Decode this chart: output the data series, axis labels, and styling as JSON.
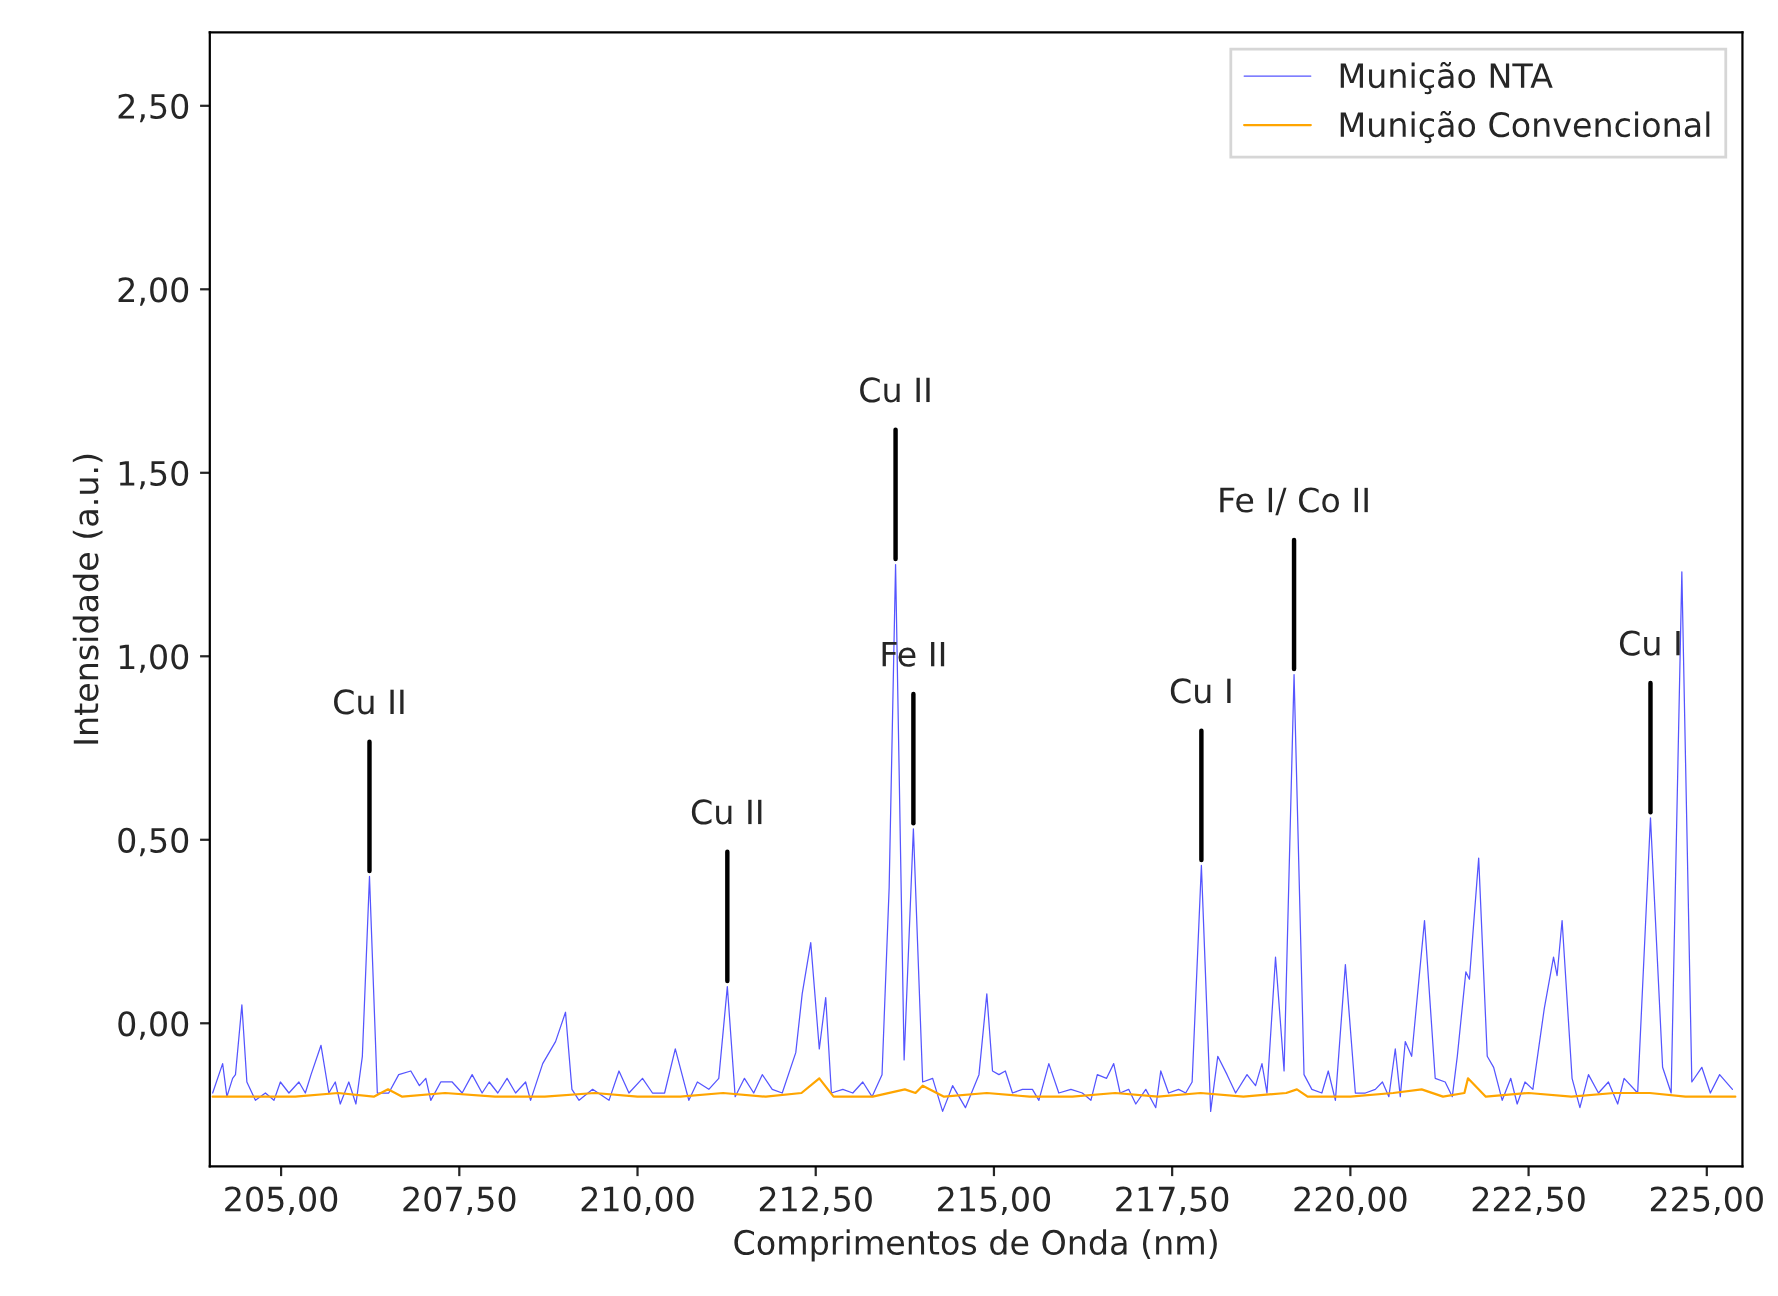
{
  "chart_data": {
    "type": "line",
    "xlabel": "Comprimentos de Onda (nm)",
    "ylabel": "Intensidade (a.u.)",
    "xlim": [
      204.0,
      225.5
    ],
    "ylim": [
      -0.39,
      2.7
    ],
    "xticks": [
      {
        "value": 205,
        "label": "205,00"
      },
      {
        "value": 207.5,
        "label": "207,50"
      },
      {
        "value": 210,
        "label": "210,00"
      },
      {
        "value": 212.5,
        "label": "212,50"
      },
      {
        "value": 215,
        "label": "215,00"
      },
      {
        "value": 217.5,
        "label": "217,50"
      },
      {
        "value": 220,
        "label": "220,00"
      },
      {
        "value": 222.5,
        "label": "222,50"
      },
      {
        "value": 225,
        "label": "225,00"
      }
    ],
    "yticks": [
      {
        "value": 0,
        "label": "0,00"
      },
      {
        "value": 0.5,
        "label": "0,50"
      },
      {
        "value": 1,
        "label": "1,00"
      },
      {
        "value": 1.5,
        "label": "1,50"
      },
      {
        "value": 2,
        "label": "2,00"
      },
      {
        "value": 2.5,
        "label": "2,50"
      }
    ],
    "grid": false,
    "legend": "top right",
    "marker": "none",
    "line_style": "solid",
    "series": [
      {
        "name": "Munição NTA",
        "color": "#5555ff",
        "x": [
          204.04,
          204.18,
          204.24,
          204.32,
          204.36,
          204.45,
          204.52,
          204.64,
          204.78,
          204.9,
          204.99,
          205.11,
          205.25,
          205.34,
          205.42,
          205.56,
          205.67,
          205.76,
          205.83,
          205.95,
          206.05,
          206.14,
          206.24,
          206.35,
          206.51,
          206.65,
          206.82,
          206.94,
          207.03,
          207.1,
          207.24,
          207.4,
          207.54,
          207.68,
          207.82,
          207.92,
          208.04,
          208.17,
          208.29,
          208.43,
          208.5,
          208.67,
          208.85,
          208.99,
          209.08,
          209.18,
          209.37,
          209.6,
          209.74,
          209.88,
          210.07,
          210.21,
          210.38,
          210.53,
          210.72,
          210.84,
          211.0,
          211.14,
          211.26,
          211.37,
          211.5,
          211.63,
          211.75,
          211.89,
          212.03,
          212.22,
          212.31,
          212.43,
          212.55,
          212.64,
          212.72,
          212.88,
          213.02,
          213.16,
          213.29,
          213.43,
          213.53,
          213.62,
          213.74,
          213.87,
          214.0,
          214.14,
          214.28,
          214.42,
          214.6,
          214.79,
          214.9,
          214.98,
          215.07,
          215.16,
          215.26,
          215.4,
          215.54,
          215.63,
          215.77,
          215.91,
          216.08,
          216.24,
          216.36,
          216.45,
          216.58,
          216.68,
          216.77,
          216.89,
          216.99,
          217.13,
          217.27,
          217.34,
          217.45,
          217.59,
          217.69,
          217.78,
          217.91,
          218.04,
          218.14,
          218.27,
          218.39,
          218.55,
          218.67,
          218.76,
          218.83,
          218.95,
          219.07,
          219.21,
          219.35,
          219.46,
          219.6,
          219.69,
          219.79,
          219.93,
          220.07,
          220.21,
          220.35,
          220.45,
          220.54,
          220.63,
          220.7,
          220.77,
          220.86,
          221.04,
          221.19,
          221.33,
          221.43,
          221.5,
          221.62,
          221.67,
          221.8,
          221.92,
          222.01,
          222.13,
          222.25,
          222.34,
          222.45,
          222.56,
          222.72,
          222.85,
          222.9,
          222.97,
          223.11,
          223.22,
          223.34,
          223.48,
          223.62,
          223.75,
          223.84,
          224.03,
          224.21,
          224.38,
          224.5,
          224.65,
          224.79,
          224.93,
          225.05,
          225.18,
          225.36
        ],
        "values": [
          -0.19,
          -0.11,
          -0.2,
          -0.15,
          -0.14,
          0.05,
          -0.16,
          -0.21,
          -0.19,
          -0.21,
          -0.16,
          -0.19,
          -0.16,
          -0.19,
          -0.14,
          -0.06,
          -0.19,
          -0.16,
          -0.22,
          -0.16,
          -0.22,
          -0.09,
          0.4,
          -0.19,
          -0.19,
          -0.14,
          -0.13,
          -0.17,
          -0.15,
          -0.21,
          -0.16,
          -0.16,
          -0.19,
          -0.14,
          -0.19,
          -0.16,
          -0.19,
          -0.15,
          -0.19,
          -0.16,
          -0.21,
          -0.11,
          -0.05,
          0.03,
          -0.18,
          -0.21,
          -0.18,
          -0.21,
          -0.13,
          -0.19,
          -0.15,
          -0.19,
          -0.19,
          -0.07,
          -0.21,
          -0.16,
          -0.18,
          -0.15,
          0.1,
          -0.2,
          -0.15,
          -0.19,
          -0.14,
          -0.18,
          -0.19,
          -0.08,
          0.08,
          0.22,
          -0.07,
          0.07,
          -0.19,
          -0.18,
          -0.19,
          -0.16,
          -0.2,
          -0.14,
          0.37,
          1.25,
          -0.1,
          0.53,
          -0.16,
          -0.15,
          -0.24,
          -0.17,
          -0.23,
          -0.14,
          0.08,
          -0.13,
          -0.14,
          -0.13,
          -0.19,
          -0.18,
          -0.18,
          -0.21,
          -0.11,
          -0.19,
          -0.18,
          -0.19,
          -0.21,
          -0.14,
          -0.15,
          -0.11,
          -0.19,
          -0.18,
          -0.22,
          -0.18,
          -0.23,
          -0.13,
          -0.19,
          -0.18,
          -0.19,
          -0.16,
          0.43,
          -0.24,
          -0.09,
          -0.14,
          -0.19,
          -0.14,
          -0.17,
          -0.11,
          -0.19,
          0.18,
          -0.13,
          0.95,
          -0.14,
          -0.18,
          -0.19,
          -0.13,
          -0.21,
          0.16,
          -0.19,
          -0.19,
          -0.18,
          -0.16,
          -0.2,
          -0.07,
          -0.2,
          -0.05,
          -0.09,
          0.28,
          -0.15,
          -0.16,
          -0.2,
          -0.09,
          0.14,
          0.12,
          0.45,
          -0.09,
          -0.12,
          -0.21,
          -0.15,
          -0.22,
          -0.16,
          -0.18,
          0.04,
          0.18,
          0.13,
          0.28,
          -0.15,
          -0.23,
          -0.14,
          -0.19,
          -0.16,
          -0.22,
          -0.15,
          -0.19,
          0.56,
          -0.12,
          -0.19,
          1.23,
          -0.16,
          -0.12,
          -0.19,
          -0.14,
          -0.18
        ]
      },
      {
        "name": "Munição Convencional",
        "color": "#ffa500",
        "x": [
          204.04,
          204.6,
          205.2,
          205.8,
          206.3,
          206.5,
          206.7,
          207.3,
          208.0,
          208.7,
          209.4,
          210.0,
          210.6,
          211.2,
          211.8,
          212.3,
          212.55,
          212.75,
          213.3,
          213.75,
          213.9,
          214.0,
          214.3,
          214.9,
          215.5,
          216.1,
          216.7,
          217.3,
          217.9,
          218.5,
          219.1,
          219.25,
          219.4,
          220.0,
          220.6,
          221.0,
          221.3,
          221.6,
          221.65,
          221.9,
          222.5,
          223.1,
          223.7,
          224.2,
          224.7,
          225.4
        ],
        "values": [
          -0.2,
          -0.2,
          -0.2,
          -0.19,
          -0.2,
          -0.18,
          -0.2,
          -0.19,
          -0.2,
          -0.2,
          -0.19,
          -0.2,
          -0.2,
          -0.19,
          -0.2,
          -0.19,
          -0.15,
          -0.2,
          -0.2,
          -0.18,
          -0.19,
          -0.17,
          -0.2,
          -0.19,
          -0.2,
          -0.2,
          -0.19,
          -0.2,
          -0.19,
          -0.2,
          -0.19,
          -0.18,
          -0.2,
          -0.2,
          -0.19,
          -0.18,
          -0.2,
          -0.19,
          -0.15,
          -0.2,
          -0.19,
          -0.2,
          -0.19,
          -0.19,
          -0.2,
          -0.2
        ]
      }
    ],
    "annotations": [
      {
        "text": "Cu II",
        "x": 206.24,
        "y": 0.4
      },
      {
        "text": "Cu II",
        "x": 211.26,
        "y": 0.1
      },
      {
        "text": "Cu II",
        "x": 213.62,
        "y": 1.25
      },
      {
        "text": "Fe II",
        "x": 213.87,
        "y": 0.53
      },
      {
        "text": "Cu I",
        "x": 217.91,
        "y": 0.43
      },
      {
        "text": "Fe I/ Co II",
        "x": 219.21,
        "y": 0.95
      },
      {
        "text": "Cu I",
        "x": 224.21,
        "y": 0.56
      }
    ]
  }
}
